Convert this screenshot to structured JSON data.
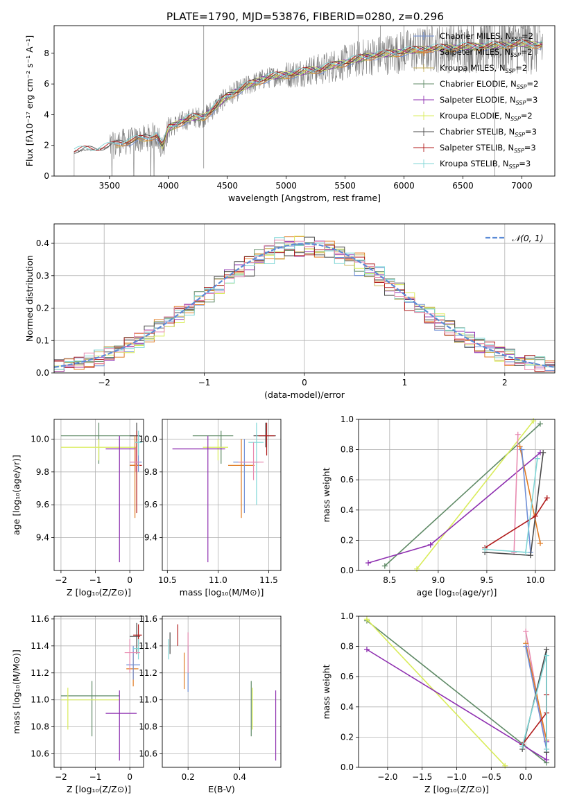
{
  "title": "PLATE=1790, MJD=53876, FIBERID=0280, z=0.296",
  "colors": {
    "chabrier_miles": "#6f8fd6",
    "salpeter_miles": "#e07b22",
    "kroupa_miles": "#c9b25a",
    "chabrier_elodie": "#5f8a66",
    "salpeter_elodie": "#8e2fb0",
    "kroupa_elodie": "#d9ec5a",
    "chabrier_stelib": "#4a4a4a",
    "salpeter_stelib": "#b01a1a",
    "kroupa_stelib": "#7fd6d6",
    "pink": "#e88ab0",
    "data": "#7a7a7a",
    "normal": "#5b8bd6"
  },
  "chart_data": [
    {
      "id": "spectrum",
      "type": "line",
      "xlabel": "wavelength [Angstrom, rest frame]",
      "ylabel": "Flux [fλ10⁻¹⁷ erg cm⁻² s⁻¹ A⁻¹]",
      "xlim": [
        3030,
        7280
      ],
      "ylim": [
        0,
        9.8
      ],
      "xticks": [
        "3500",
        "4000",
        "4500",
        "5000",
        "5500",
        "6000",
        "6500",
        "7000"
      ],
      "yticks": [
        "0",
        "2",
        "4",
        "6",
        "8"
      ],
      "legend_location": "right",
      "legend": [
        {
          "label": "Chabrier MILES, N",
          "sub": "SSP",
          "val": "=2"
        },
        {
          "label": "Salpeter MILES, N",
          "sub": "SSP",
          "val": "=2"
        },
        {
          "label": "Kroupa MILES, N",
          "sub": "SSP",
          "val": "=2"
        },
        {
          "label": "Chabrier ELODIE, N",
          "sub": "SSP",
          "val": "=2"
        },
        {
          "label": "Salpeter ELODIE, N",
          "sub": "SSP",
          "val": "=3"
        },
        {
          "label": "Kroupa ELODIE, N",
          "sub": "SSP",
          "val": "=2"
        },
        {
          "label": "Chabrier STELIB, N",
          "sub": "SSP",
          "val": "=3"
        },
        {
          "label": "Salpeter STELIB, N",
          "sub": "SSP",
          "val": "=3"
        },
        {
          "label": "Kroupa STELIB, N",
          "sub": "SSP",
          "val": "=3"
        }
      ],
      "continuum": {
        "x": [
          3200,
          3250,
          3300,
          3400,
          3500,
          3600,
          3700,
          3800,
          3900,
          3950,
          4000,
          4100,
          4200,
          4300,
          4400,
          4500,
          4600,
          4700,
          4800,
          4900,
          5000,
          5100,
          5200,
          5300,
          5400,
          5500,
          5600,
          5700,
          5800,
          5900,
          6000,
          6200,
          6400,
          6600,
          6800,
          7000,
          7200
        ],
        "y": [
          1.6,
          1.65,
          1.7,
          1.75,
          1.9,
          2.2,
          2.3,
          2.45,
          2.7,
          1.9,
          3.1,
          3.5,
          3.8,
          3.85,
          4.5,
          5.2,
          5.6,
          6.0,
          6.3,
          6.5,
          6.6,
          6.7,
          6.9,
          6.95,
          7.2,
          7.4,
          7.6,
          7.8,
          7.9,
          8.0,
          8.1,
          8.3,
          8.35,
          8.45,
          8.5,
          8.6,
          8.55
        ]
      },
      "data_range": [
        3200,
        7180
      ]
    },
    {
      "id": "residuals",
      "type": "bar",
      "xlabel": "(data-model)/error",
      "ylabel": "Normed distribution",
      "xlim": [
        -2.5,
        2.5
      ],
      "ylim": [
        0,
        0.46
      ],
      "xticks": [
        "−2",
        "−1",
        "0",
        "1",
        "2"
      ],
      "yticks": [
        "0.0",
        "0.1",
        "0.2",
        "0.3",
        "0.4"
      ],
      "legend": {
        "label": "𝒩(0, 1)"
      },
      "bin_width": 0.1
    },
    {
      "id": "age_vs_Z",
      "type": "scatter",
      "xlabel": "Z [log₁₀(Z/Z⊙)]",
      "ylabel": "age  [log₁₀(age/yr)]",
      "xlim": [
        -2.2,
        0.4
      ],
      "ylim": [
        9.2,
        10.12
      ],
      "xticks": [
        "−2",
        "−1",
        "0"
      ],
      "yticks": [
        "9.4",
        "9.6",
        "9.8",
        "10.0"
      ],
      "points": [
        {
          "c": "chabrier_elodie",
          "x": -0.9,
          "y": 10.02,
          "xl": -2.0,
          "xh": 0.2,
          "yl": 9.85,
          "yh": 10.1
        },
        {
          "c": "kroupa_elodie",
          "x": -0.9,
          "y": 9.95,
          "xl": -2.0,
          "xh": 0.2,
          "yl": 9.87,
          "yh": 10.0
        },
        {
          "c": "salpeter_elodie",
          "x": -0.3,
          "y": 9.94,
          "xl": -0.7,
          "xh": 0.2,
          "yl": 9.25,
          "yh": 10.02
        },
        {
          "c": "chabrier_stelib",
          "x": 0.2,
          "y": 10.02,
          "xl": 0.0,
          "xh": 0.3,
          "yl": 9.95,
          "yh": 10.1
        },
        {
          "c": "salpeter_stelib",
          "x": 0.2,
          "y": 9.84,
          "xl": 0.0,
          "xh": 0.35,
          "yl": 9.55,
          "yh": 10.05
        },
        {
          "c": "salpeter_miles",
          "x": 0.15,
          "y": 9.84,
          "xl": 0.0,
          "xh": 0.3,
          "yl": 9.52,
          "yh": 10.02
        },
        {
          "c": "chabrier_miles",
          "x": 0.25,
          "y": 9.86,
          "xl": 0.0,
          "xh": 0.35,
          "yl": 9.8,
          "yh": 10.05
        },
        {
          "c": "kroupa_stelib",
          "x": 0.25,
          "y": 9.98,
          "xl": 0.15,
          "xh": 0.35,
          "yl": 9.9,
          "yh": 10.05
        },
        {
          "c": "pink",
          "x": 0.18,
          "y": 9.86,
          "xl": 0.0,
          "xh": 0.3,
          "yl": 9.8,
          "yh": 9.95
        }
      ]
    },
    {
      "id": "age_vs_mass",
      "type": "scatter",
      "xlabel": "mass [log₁₀(M/M⊙)]",
      "ylabel": "",
      "xlim": [
        10.45,
        11.62
      ],
      "ylim": [
        9.2,
        10.12
      ],
      "xticks": [
        "10.5",
        "11.0",
        "11.5"
      ],
      "yticks": [
        "9.4",
        "9.6",
        "9.8",
        "10.0"
      ],
      "points": [
        {
          "c": "chabrier_elodie",
          "x": 11.03,
          "y": 10.02,
          "xl": 10.75,
          "xh": 11.15,
          "yl": 9.85,
          "yh": 10.05
        },
        {
          "c": "kroupa_elodie",
          "x": 11.0,
          "y": 9.95,
          "xl": 10.85,
          "xh": 11.1,
          "yl": 9.87,
          "yh": 10.0
        },
        {
          "c": "salpeter_elodie",
          "x": 10.9,
          "y": 9.94,
          "xl": 10.55,
          "xh": 11.07,
          "yl": 9.25,
          "yh": 10.02
        },
        {
          "c": "chabrier_stelib",
          "x": 11.47,
          "y": 10.02,
          "xl": 11.35,
          "xh": 11.57,
          "yl": 9.95,
          "yh": 10.1
        },
        {
          "c": "salpeter_stelib",
          "x": 11.48,
          "y": 10.02,
          "xl": 11.4,
          "xh": 11.56,
          "yl": 9.9,
          "yh": 10.1
        },
        {
          "c": "salpeter_miles",
          "x": 11.23,
          "y": 9.84,
          "xl": 11.1,
          "xh": 11.36,
          "yl": 9.52,
          "yh": 10.0
        },
        {
          "c": "chabrier_miles",
          "x": 11.26,
          "y": 9.86,
          "xl": 11.15,
          "xh": 11.4,
          "yl": 9.55,
          "yh": 10.0
        },
        {
          "c": "kroupa_stelib",
          "x": 11.38,
          "y": 9.98,
          "xl": 11.3,
          "xh": 11.45,
          "yl": 9.6,
          "yh": 10.1
        },
        {
          "c": "pink",
          "x": 11.35,
          "y": 9.86,
          "xl": 11.2,
          "xh": 11.45,
          "yl": 9.75,
          "yh": 9.98
        }
      ]
    },
    {
      "id": "weight_vs_age",
      "type": "line",
      "xlabel": "age  [log₁₀(age/yr)]",
      "ylabel": "mass weight",
      "xlim": [
        8.18,
        10.2
      ],
      "ylim": [
        0,
        1.0
      ],
      "xticks": [
        "8.5",
        "9.0",
        "9.5",
        "10.0"
      ],
      "yticks": [
        "0.0",
        "0.2",
        "0.4",
        "0.6",
        "0.8",
        "1.0"
      ],
      "series": [
        {
          "c": "chabrier_elodie",
          "points": [
            [
              8.45,
              0.03
            ],
            [
              10.05,
              0.97
            ]
          ]
        },
        {
          "c": "kroupa_elodie",
          "points": [
            [
              8.78,
              0.01
            ],
            [
              9.98,
              0.99
            ]
          ]
        },
        {
          "c": "salpeter_elodie",
          "points": [
            [
              8.28,
              0.05
            ],
            [
              8.92,
              0.17
            ],
            [
              10.05,
              0.78
            ]
          ]
        },
        {
          "c": "pink",
          "points": [
            [
              9.78,
              0.12
            ],
            [
              9.82,
              0.9
            ]
          ]
        },
        {
          "c": "salpeter_miles",
          "points": [
            [
              9.84,
              0.82
            ],
            [
              10.05,
              0.18
            ]
          ]
        },
        {
          "c": "chabrier_miles",
          "points": [
            [
              9.86,
              0.8
            ],
            [
              9.95,
              0.12
            ]
          ]
        },
        {
          "c": "chabrier_stelib",
          "points": [
            [
              9.48,
              0.12
            ],
            [
              9.95,
              0.1
            ],
            [
              10.08,
              0.78
            ]
          ]
        },
        {
          "c": "salpeter_stelib",
          "points": [
            [
              9.48,
              0.15
            ],
            [
              10.0,
              0.36
            ],
            [
              10.12,
              0.48
            ]
          ]
        },
        {
          "c": "kroupa_stelib",
          "points": [
            [
              9.48,
              0.14
            ],
            [
              9.9,
              0.12
            ],
            [
              10.02,
              0.74
            ]
          ]
        }
      ]
    },
    {
      "id": "mass_vs_Z",
      "type": "scatter",
      "xlabel": "Z [log₁₀(Z/Z⊙)]",
      "ylabel": "mass [log₁₀(M/M⊙)]",
      "xlim": [
        -2.2,
        0.4
      ],
      "ylim": [
        10.5,
        11.62
      ],
      "xticks": [
        "−2",
        "−1",
        "0"
      ],
      "yticks": [
        "10.6",
        "10.8",
        "11.0",
        "11.2",
        "11.4",
        "11.6"
      ],
      "points": [
        {
          "c": "chabrier_elodie",
          "x": -1.1,
          "y": 11.03,
          "xl": -2.0,
          "xh": -0.3,
          "yl": 10.73,
          "yh": 11.14
        },
        {
          "c": "kroupa_elodie",
          "x": -1.8,
          "y": 11.0,
          "xl": -2.0,
          "xh": -0.3,
          "yl": 10.78,
          "yh": 11.09
        },
        {
          "c": "salpeter_elodie",
          "x": -0.3,
          "y": 10.9,
          "xl": -0.7,
          "xh": 0.2,
          "yl": 10.55,
          "yh": 11.07
        },
        {
          "c": "chabrier_stelib",
          "x": 0.2,
          "y": 11.47,
          "xl": 0.0,
          "xh": 0.3,
          "yl": 11.34,
          "yh": 11.57
        },
        {
          "c": "salpeter_stelib",
          "x": 0.25,
          "y": 11.48,
          "xl": 0.1,
          "xh": 0.35,
          "yl": 11.4,
          "yh": 11.56
        },
        {
          "c": "salpeter_miles",
          "x": 0.1,
          "y": 11.23,
          "xl": -0.1,
          "xh": 0.25,
          "yl": 11.1,
          "yh": 11.36
        },
        {
          "c": "chabrier_miles",
          "x": 0.1,
          "y": 11.26,
          "xl": -0.1,
          "xh": 0.3,
          "yl": 11.15,
          "yh": 11.4
        },
        {
          "c": "kroupa_stelib",
          "x": 0.25,
          "y": 11.38,
          "xl": 0.1,
          "xh": 0.35,
          "yl": 11.3,
          "yh": 11.45
        },
        {
          "c": "pink",
          "x": 0.0,
          "y": 11.35,
          "xl": -0.15,
          "xh": 0.3,
          "yl": 11.2,
          "yh": 11.45
        }
      ]
    },
    {
      "id": "mass_vs_ebv",
      "type": "scatter",
      "xlabel": "E(B-V)",
      "ylabel": "",
      "xlim": [
        0.1,
        0.56
      ],
      "ylim": [
        10.5,
        11.62
      ],
      "xticks": [
        "0.2",
        "0.4"
      ],
      "yticks": [
        "10.6",
        "10.8",
        "11.0",
        "11.2",
        "11.4",
        "11.6"
      ],
      "points": [
        {
          "c": "chabrier_elodie",
          "x": 0.445,
          "yl": 10.73,
          "yh": 11.14
        },
        {
          "c": "kroupa_elodie",
          "x": 0.45,
          "yl": 10.78,
          "yh": 11.09
        },
        {
          "c": "salpeter_elodie",
          "x": 0.54,
          "yl": 10.55,
          "yh": 11.07
        },
        {
          "c": "chabrier_stelib",
          "x": 0.13,
          "yl": 11.34,
          "yh": 11.5
        },
        {
          "c": "salpeter_stelib",
          "x": 0.16,
          "yl": 11.4,
          "yh": 11.56
        },
        {
          "c": "salpeter_miles",
          "x": 0.185,
          "yl": 11.08,
          "yh": 11.35
        },
        {
          "c": "chabrier_miles",
          "x": 0.2,
          "yl": 11.06,
          "yh": 11.4
        },
        {
          "c": "kroupa_stelib",
          "x": 0.125,
          "yl": 11.3,
          "yh": 11.45
        },
        {
          "c": "pink",
          "x": 0.2,
          "yl": 11.2,
          "yh": 11.5
        }
      ]
    },
    {
      "id": "weight_vs_Z",
      "type": "line",
      "xlabel": "Z [log₁₀(Z/Z⊙)]",
      "ylabel": "mass weight",
      "xlim": [
        -2.42,
        0.42
      ],
      "ylim": [
        0,
        1.0
      ],
      "xticks": [
        "−2.0",
        "−1.5",
        "−1.0",
        "−0.5",
        "0.0"
      ],
      "yticks": [
        "0.0",
        "0.2",
        "0.4",
        "0.6",
        "0.8",
        "1.0"
      ],
      "series": [
        {
          "c": "chabrier_elodie",
          "points": [
            [
              -2.3,
              0.97
            ],
            [
              0.3,
              0.03
            ]
          ]
        },
        {
          "c": "kroupa_elodie",
          "points": [
            [
              -2.3,
              0.98
            ],
            [
              -0.3,
              0.01
            ]
          ]
        },
        {
          "c": "salpeter_elodie",
          "points": [
            [
              -2.3,
              0.78
            ],
            [
              0.3,
              0.05
            ],
            [
              0.3,
              0.17
            ]
          ]
        },
        {
          "c": "pink",
          "points": [
            [
              0.0,
              0.9
            ],
            [
              0.3,
              0.12
            ]
          ]
        },
        {
          "c": "salpeter_miles",
          "points": [
            [
              0.0,
              0.82
            ],
            [
              0.3,
              0.18
            ]
          ]
        },
        {
          "c": "chabrier_miles",
          "points": [
            [
              0.0,
              0.8
            ],
            [
              0.3,
              0.12
            ]
          ]
        },
        {
          "c": "chabrier_stelib",
          "points": [
            [
              -0.05,
              0.12
            ],
            [
              0.3,
              0.78
            ],
            [
              0.3,
              0.1
            ]
          ]
        },
        {
          "c": "salpeter_stelib",
          "points": [
            [
              -0.05,
              0.15
            ],
            [
              0.3,
              0.36
            ],
            [
              0.3,
              0.48
            ]
          ]
        },
        {
          "c": "kroupa_stelib",
          "points": [
            [
              -0.05,
              0.14
            ],
            [
              0.3,
              0.74
            ],
            [
              0.3,
              0.12
            ]
          ]
        }
      ]
    }
  ]
}
